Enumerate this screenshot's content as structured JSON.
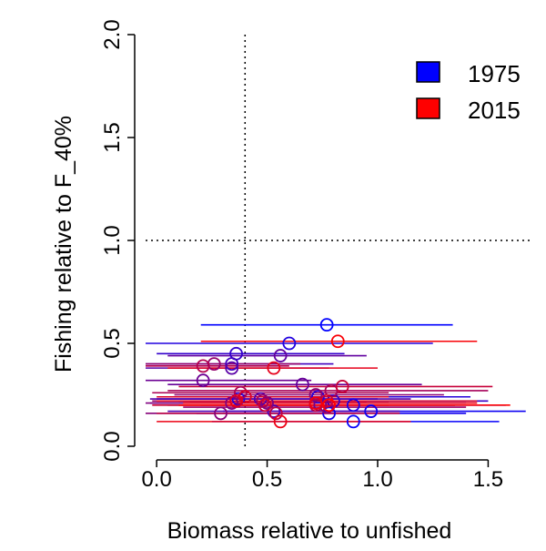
{
  "chart_data": {
    "type": "scatter",
    "title": "",
    "xlabel": "Biomass relative to unfished",
    "ylabel": "Fishing relative to F_40%",
    "xlim": [
      -0.05,
      1.7
    ],
    "ylim": [
      0.0,
      2.0
    ],
    "x_ticks": [
      "0.0",
      "0.5",
      "1.0",
      "1.5"
    ],
    "y_ticks": [
      "0.0",
      "0.5",
      "1.0",
      "1.5",
      "2.0"
    ],
    "x_tick_values": [
      0.0,
      0.5,
      1.0,
      1.5
    ],
    "y_tick_values": [
      0.0,
      0.5,
      1.0,
      1.5,
      2.0
    ],
    "reference_lines": {
      "vertical_x": 0.4,
      "horizontal_y": 1.0,
      "style": "dotted"
    },
    "grid": false,
    "legend": {
      "placement": "top-right",
      "entries": [
        {
          "label": "1975",
          "color": "#0000ff"
        },
        {
          "label": "2015",
          "color": "#ff0000"
        }
      ]
    },
    "color_scale": {
      "start_year": 1975,
      "end_year": 2015,
      "start_color": "#0000ff",
      "end_color": "#ff0000"
    },
    "series": [
      {
        "year": 1975,
        "x": 0.77,
        "y": 0.59,
        "x_lo": 0.2,
        "x_hi": 1.34
      },
      {
        "year": 1976,
        "x": 0.89,
        "y": 0.12,
        "x_lo": 0.25,
        "x_hi": 1.55
      },
      {
        "year": 1977,
        "x": 0.97,
        "y": 0.17,
        "x_lo": 0.3,
        "x_hi": 1.67
      },
      {
        "year": 1978,
        "x": 0.78,
        "y": 0.16,
        "x_lo": 0.18,
        "x_hi": 1.4
      },
      {
        "year": 1979,
        "x": 0.89,
        "y": 0.2,
        "x_lo": 0.2,
        "x_hi": 1.58
      },
      {
        "year": 1980,
        "x": 0.6,
        "y": 0.5,
        "x_lo": -0.05,
        "x_hi": 1.25
      },
      {
        "year": 1981,
        "x": 0.73,
        "y": 0.24,
        "x_lo": 0.05,
        "x_hi": 1.42
      },
      {
        "year": 1982,
        "x": 0.37,
        "y": 0.23,
        "x_lo": 0.0,
        "x_hi": 1.0
      },
      {
        "year": 1983,
        "x": 0.36,
        "y": 0.45,
        "x_lo": 0.0,
        "x_hi": 0.85
      },
      {
        "year": 1984,
        "x": 0.8,
        "y": 0.22,
        "x_lo": 0.15,
        "x_hi": 1.5
      },
      {
        "year": 1985,
        "x": 0.34,
        "y": 0.4,
        "x_lo": -0.05,
        "x_hi": 0.8
      },
      {
        "year": 1986,
        "x": 0.72,
        "y": 0.21,
        "x_lo": 0.1,
        "x_hi": 1.4
      },
      {
        "year": 1987,
        "x": 0.53,
        "y": 0.17,
        "x_lo": 0.05,
        "x_hi": 1.1
      },
      {
        "year": 1988,
        "x": 0.47,
        "y": 0.23,
        "x_lo": -0.03,
        "x_hi": 1.15
      },
      {
        "year": 1989,
        "x": 0.34,
        "y": 0.38,
        "x_lo": -0.05,
        "x_hi": 0.78
      },
      {
        "year": 1990,
        "x": 0.56,
        "y": 0.44,
        "x_lo": 0.05,
        "x_hi": 0.95
      },
      {
        "year": 1991,
        "x": 0.66,
        "y": 0.3,
        "x_lo": 0.05,
        "x_hi": 1.2
      },
      {
        "year": 1992,
        "x": 0.21,
        "y": 0.32,
        "x_lo": -0.05,
        "x_hi": 0.7
      },
      {
        "year": 1993,
        "x": 0.74,
        "y": 0.2,
        "x_lo": 0.1,
        "x_hi": 1.35
      },
      {
        "year": 1994,
        "x": 0.5,
        "y": 0.21,
        "x_lo": -0.03,
        "x_hi": 1.05
      },
      {
        "year": 1995,
        "x": 0.34,
        "y": 0.21,
        "x_lo": -0.05,
        "x_hi": 0.95
      },
      {
        "year": 1996,
        "x": 0.29,
        "y": 0.16,
        "x_lo": -0.05,
        "x_hi": 0.9
      },
      {
        "year": 1997,
        "x": 0.72,
        "y": 0.25,
        "x_lo": 0.08,
        "x_hi": 1.3
      },
      {
        "year": 1998,
        "x": 0.26,
        "y": 0.4,
        "x_lo": -0.05,
        "x_hi": 0.65
      },
      {
        "year": 1999,
        "x": 0.77,
        "y": 0.19,
        "x_lo": 0.12,
        "x_hi": 1.4
      },
      {
        "year": 2000,
        "x": 0.48,
        "y": 0.22,
        "x_lo": -0.02,
        "x_hi": 1.05
      },
      {
        "year": 2001,
        "x": 0.79,
        "y": 0.27,
        "x_lo": 0.05,
        "x_hi": 1.5
      },
      {
        "year": 2002,
        "x": 0.38,
        "y": 0.26,
        "x_lo": -0.02,
        "x_hi": 1.05
      },
      {
        "year": 2003,
        "x": 0.21,
        "y": 0.39,
        "x_lo": -0.05,
        "x_hi": 0.6
      },
      {
        "year": 2004,
        "x": 0.54,
        "y": 0.16,
        "x_lo": 0.0,
        "x_hi": 1.1
      },
      {
        "year": 2005,
        "x": 0.72,
        "y": 0.2,
        "x_lo": 0.05,
        "x_hi": 1.35
      },
      {
        "year": 2006,
        "x": 0.84,
        "y": 0.29,
        "x_lo": 0.1,
        "x_hi": 1.52
      },
      {
        "year": 2007,
        "x": 0.49,
        "y": 0.2,
        "x_lo": -0.02,
        "x_hi": 1.05
      },
      {
        "year": 2008,
        "x": 0.77,
        "y": 0.22,
        "x_lo": 0.12,
        "x_hi": 1.45
      },
      {
        "year": 2009,
        "x": 0.4,
        "y": 0.24,
        "x_lo": 0.0,
        "x_hi": 1.05
      },
      {
        "year": 2010,
        "x": 0.36,
        "y": 0.22,
        "x_lo": 0.0,
        "x_hi": 0.95
      },
      {
        "year": 2011,
        "x": 0.53,
        "y": 0.38,
        "x_lo": 0.05,
        "x_hi": 1.0
      },
      {
        "year": 2012,
        "x": 0.56,
        "y": 0.12,
        "x_lo": 0.0,
        "x_hi": 1.15
      },
      {
        "year": 2013,
        "x": 0.72,
        "y": 0.21,
        "x_lo": 0.12,
        "x_hi": 1.45
      },
      {
        "year": 2014,
        "x": 0.82,
        "y": 0.51,
        "x_lo": 0.2,
        "x_hi": 1.45
      },
      {
        "year": 2015,
        "x": 0.78,
        "y": 0.2,
        "x_lo": 0.1,
        "x_hi": 1.6
      }
    ]
  }
}
